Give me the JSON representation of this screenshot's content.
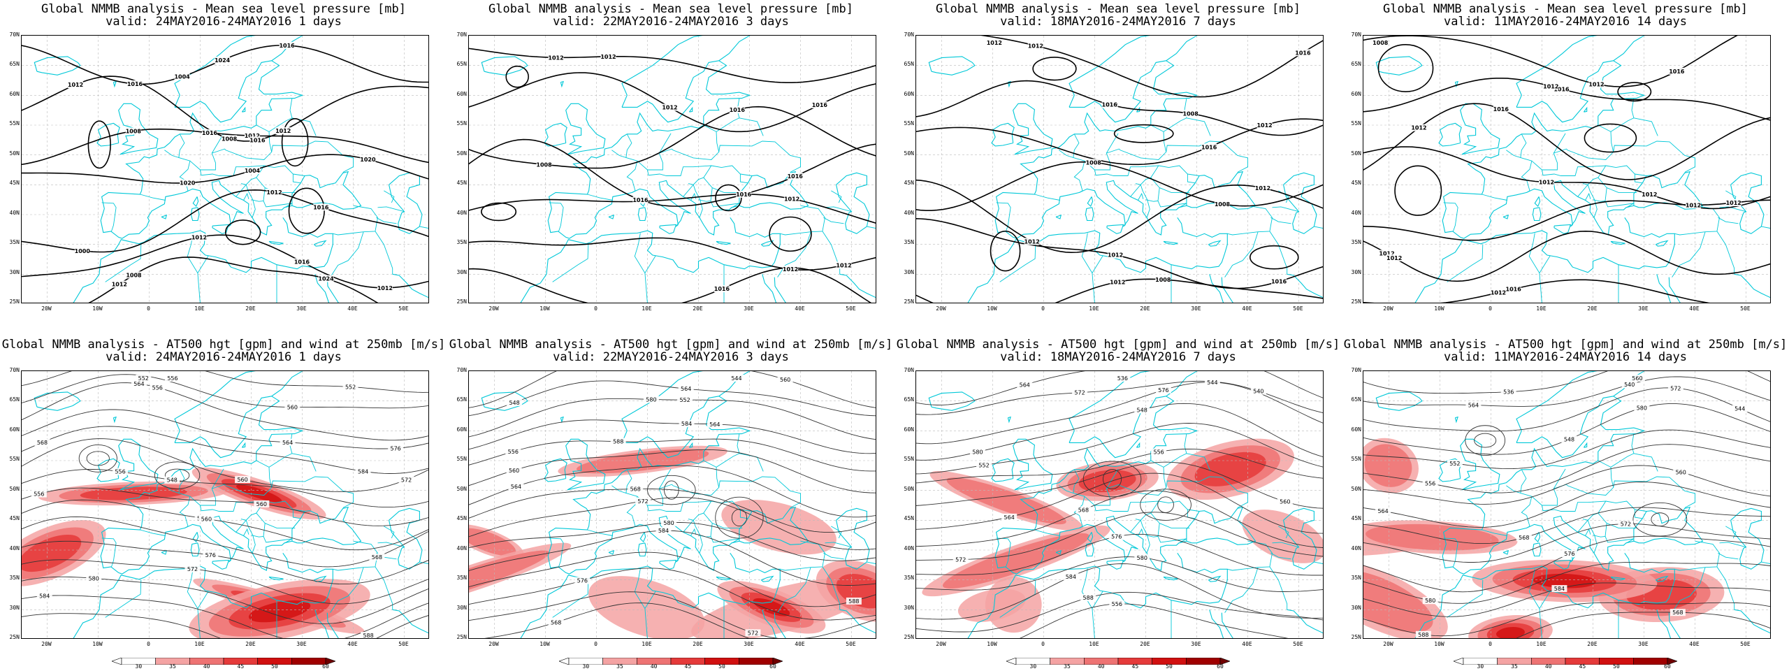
{
  "panels": [
    {
      "id": "p1",
      "title1": "Global NMMB analysis - Mean sea level pressure [mb]",
      "title2": "valid: 24MAY2016-24MAY2016  1 days",
      "kind": "slp",
      "seed": 1
    },
    {
      "id": "p2",
      "title1": "Global NMMB analysis - Mean sea level pressure [mb]",
      "title2": "valid: 22MAY2016-24MAY2016  3 days",
      "kind": "slp",
      "seed": 2
    },
    {
      "id": "p3",
      "title1": "Global NMMB analysis - Mean sea level pressure [mb]",
      "title2": "valid: 18MAY2016-24MAY2016  7 days",
      "kind": "slp",
      "seed": 3
    },
    {
      "id": "p4",
      "title1": "Global NMMB analysis - Mean sea level pressure [mb]",
      "title2": "valid: 11MAY2016-24MAY2016  14 days",
      "kind": "slp",
      "seed": 4
    },
    {
      "id": "p5",
      "title1": "Global NMMB analysis - AT500 hgt [gpm] and wind at 250mb [m/s]",
      "title2": "valid: 24MAY2016-24MAY2016  1 days",
      "kind": "z500",
      "seed": 5
    },
    {
      "id": "p6",
      "title1": "Global NMMB analysis - AT500 hgt [gpm] and wind at 250mb [m/s]",
      "title2": "valid: 22MAY2016-24MAY2016  3 days",
      "kind": "z500",
      "seed": 6
    },
    {
      "id": "p7",
      "title1": "Global NMMB analysis - AT500 hgt [gpm] and wind at 250mb [m/s]",
      "title2": "valid: 18MAY2016-24MAY2016  7 days",
      "kind": "z500",
      "seed": 7
    },
    {
      "id": "p8",
      "title1": "Global NMMB analysis - AT500 hgt [gpm] and wind at 250mb [m/s]",
      "title2": "valid: 11MAY2016-24MAY2016  14 days",
      "kind": "z500",
      "seed": 8
    }
  ],
  "lat_labels": [
    "70N",
    "65N",
    "60N",
    "55N",
    "50N",
    "45N",
    "40N",
    "35N",
    "30N",
    "25N"
  ],
  "lon_labels": [
    "20W",
    "10W",
    "0",
    "10E",
    "20E",
    "30E",
    "40E",
    "50E"
  ],
  "colorbar_labels": [
    "30",
    "35",
    "40",
    "45",
    "50",
    "60"
  ],
  "colors": {
    "coast": "#00c8d8",
    "contour": "#000000",
    "grid": "#bbbbbb",
    "wind": [
      "#fbd3d3",
      "#f4a3a3",
      "#ee7373",
      "#e53a3a",
      "#d11010",
      "#a00000"
    ]
  },
  "slp_labels": {
    "p1": [
      "1024",
      "1012",
      "1016",
      "1020",
      "1016",
      "1012",
      "1024",
      "1004",
      "1008",
      "1012",
      "1020",
      "1000",
      "1016",
      "1012",
      "1016",
      "1016",
      "1008",
      "1004",
      "1012",
      "1012",
      "1008",
      "1016",
      "1012"
    ],
    "p2": [
      "1012",
      "1016",
      "1016",
      "1016",
      "1012",
      "1012",
      "1016",
      "1012",
      "1012",
      "1008",
      "1016",
      "1016",
      "1012"
    ],
    "p3": [
      "1012",
      "1008",
      "1012",
      "1008",
      "1012",
      "1012",
      "1012",
      "1016",
      "1012",
      "1016",
      "1008",
      "1012",
      "1016",
      "1008",
      "1012",
      "1016"
    ],
    "p4": [
      "1008",
      "1016",
      "1012",
      "1012",
      "1012",
      "1012",
      "1016",
      "1016",
      "1012",
      "1016",
      "1012",
      "1012",
      "1012",
      "1012",
      "1012"
    ]
  },
  "z500_labels": {
    "p5": [
      "552",
      "552",
      "556",
      "564",
      "568",
      "560",
      "556",
      "560",
      "564",
      "568",
      "576",
      "572",
      "580",
      "584",
      "588",
      "556",
      "560",
      "564",
      "576",
      "584",
      "572",
      "548",
      "556",
      "560"
    ],
    "p6": [
      "544",
      "548",
      "552",
      "564",
      "556",
      "560",
      "564",
      "568",
      "572",
      "580",
      "584",
      "588",
      "576",
      "572",
      "568",
      "560",
      "564",
      "580",
      "584",
      "588"
    ],
    "p7": [
      "536",
      "540",
      "544",
      "548",
      "552",
      "556",
      "560",
      "564",
      "568",
      "572",
      "576",
      "580",
      "584",
      "588",
      "556",
      "564",
      "572",
      "576",
      "580"
    ],
    "p8": [
      "536",
      "540",
      "544",
      "548",
      "552",
      "556",
      "560",
      "564",
      "568",
      "572",
      "576",
      "580",
      "584",
      "588",
      "568",
      "560",
      "564",
      "572",
      "580"
    ]
  }
}
